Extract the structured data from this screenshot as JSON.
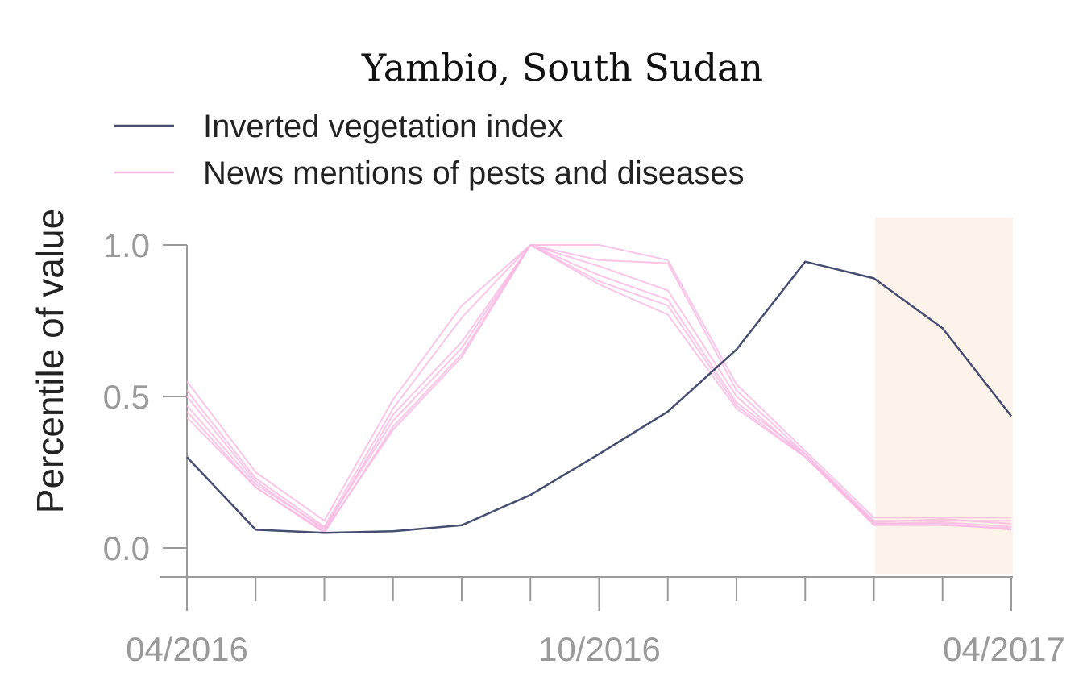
{
  "chart_data": {
    "type": "line",
    "title": "Yambio, South Sudan",
    "xlabel": "",
    "ylabel": "Percentile of value",
    "x": [
      "2016-04",
      "2016-05",
      "2016-06",
      "2016-07",
      "2016-08",
      "2016-09",
      "2016-10",
      "2016-11",
      "2016-12",
      "2017-01",
      "2017-02",
      "2017-03",
      "2017-04"
    ],
    "x_tick_labels": [
      "04/2016",
      "10/2016",
      "04/2017"
    ],
    "y_ticks": [
      "0.0",
      "0.5",
      "1.0"
    ],
    "ylim": [
      -0.1,
      1.05
    ],
    "highlight_region": {
      "from": "2017-02",
      "to": "2017-04",
      "color": "#fdf3ea"
    },
    "legend_position": "top-left",
    "colors": {
      "vegetation": "#454d70",
      "news": "#f9b8e2",
      "axis": "#9a9a9a"
    },
    "series": [
      {
        "name": "Inverted vegetation index",
        "color": "#454d70",
        "values": [
          0.3,
          0.06,
          0.05,
          0.055,
          0.075,
          0.175,
          0.31,
          0.45,
          0.655,
          0.945,
          0.89,
          0.725,
          0.435
        ]
      },
      {
        "name": "News mentions of pests and diseases",
        "color": "#f9b8e2",
        "values": [
          0.55,
          0.25,
          0.09,
          0.49,
          0.8,
          1.0,
          1.0,
          0.95,
          0.54,
          0.32,
          0.1,
          0.1,
          0.1
        ]
      },
      {
        "color": "#f9b8e2",
        "values": [
          0.52,
          0.23,
          0.07,
          0.46,
          0.76,
          1.0,
          0.95,
          0.94,
          0.52,
          0.31,
          0.09,
          0.09,
          0.09
        ]
      },
      {
        "color": "#f9b8e2",
        "values": [
          0.5,
          0.22,
          0.06,
          0.44,
          0.68,
          1.0,
          0.93,
          0.85,
          0.5,
          0.3,
          0.085,
          0.095,
          0.08
        ]
      },
      {
        "color": "#f9b8e2",
        "values": [
          0.47,
          0.21,
          0.065,
          0.42,
          0.66,
          1.0,
          0.9,
          0.82,
          0.48,
          0.31,
          0.08,
          0.085,
          0.07
        ]
      },
      {
        "color": "#f9b8e2",
        "values": [
          0.45,
          0.2,
          0.05,
          0.4,
          0.64,
          1.0,
          0.88,
          0.8,
          0.47,
          0.3,
          0.075,
          0.075,
          0.065
        ]
      },
      {
        "color": "#f9b8e2",
        "values": [
          0.43,
          0.2,
          0.055,
          0.39,
          0.63,
          1.0,
          0.87,
          0.77,
          0.46,
          0.3,
          0.08,
          0.08,
          0.06
        ]
      }
    ]
  }
}
